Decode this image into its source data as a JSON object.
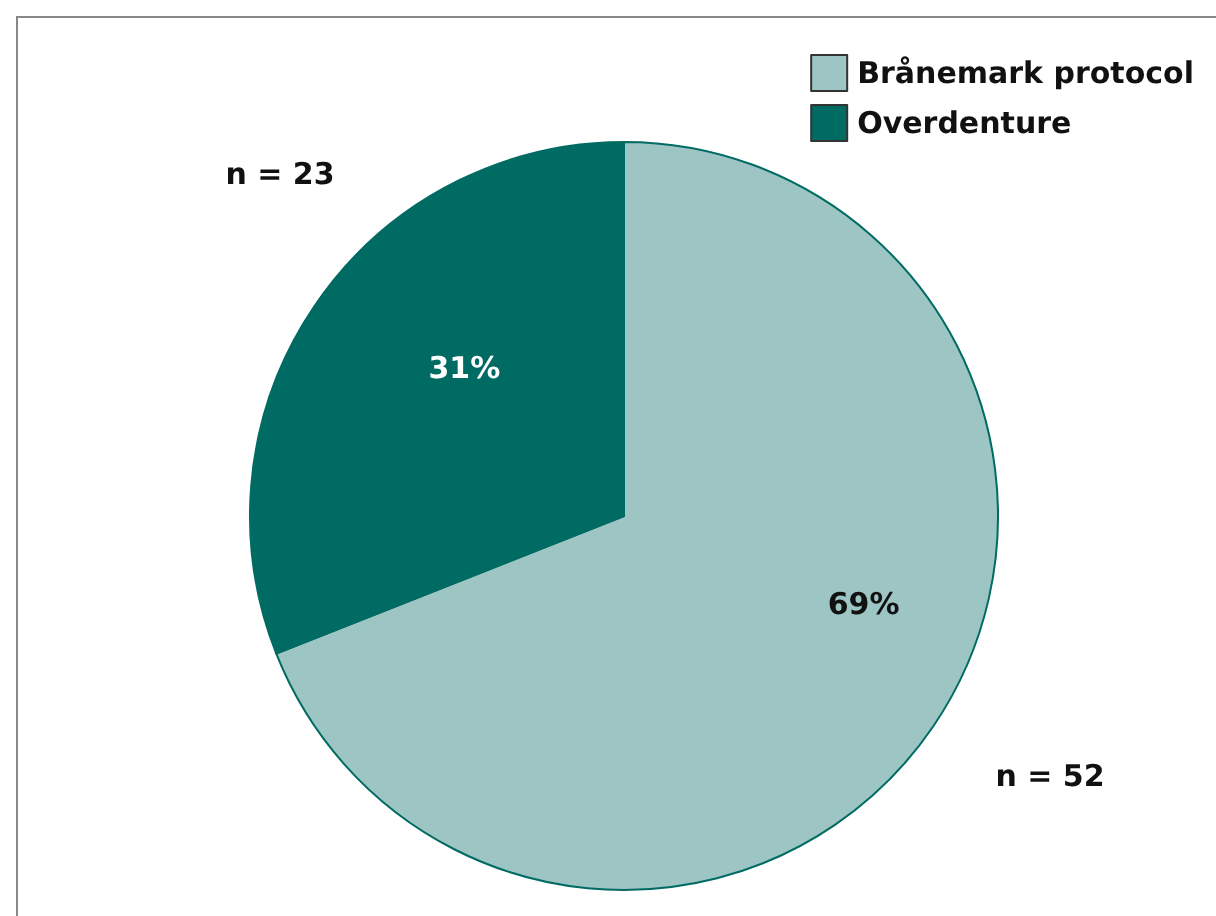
{
  "chart_data": {
    "type": "pie",
    "categories": [
      "Brånemark protocol",
      "Overdenture"
    ],
    "values": [
      69,
      31
    ],
    "colors": [
      "#9dc5c4",
      "#006b63"
    ],
    "value_labels": [
      "69%",
      "31%"
    ],
    "annotations": [
      "n = 23",
      "n = 52"
    ],
    "legend": "top right"
  }
}
